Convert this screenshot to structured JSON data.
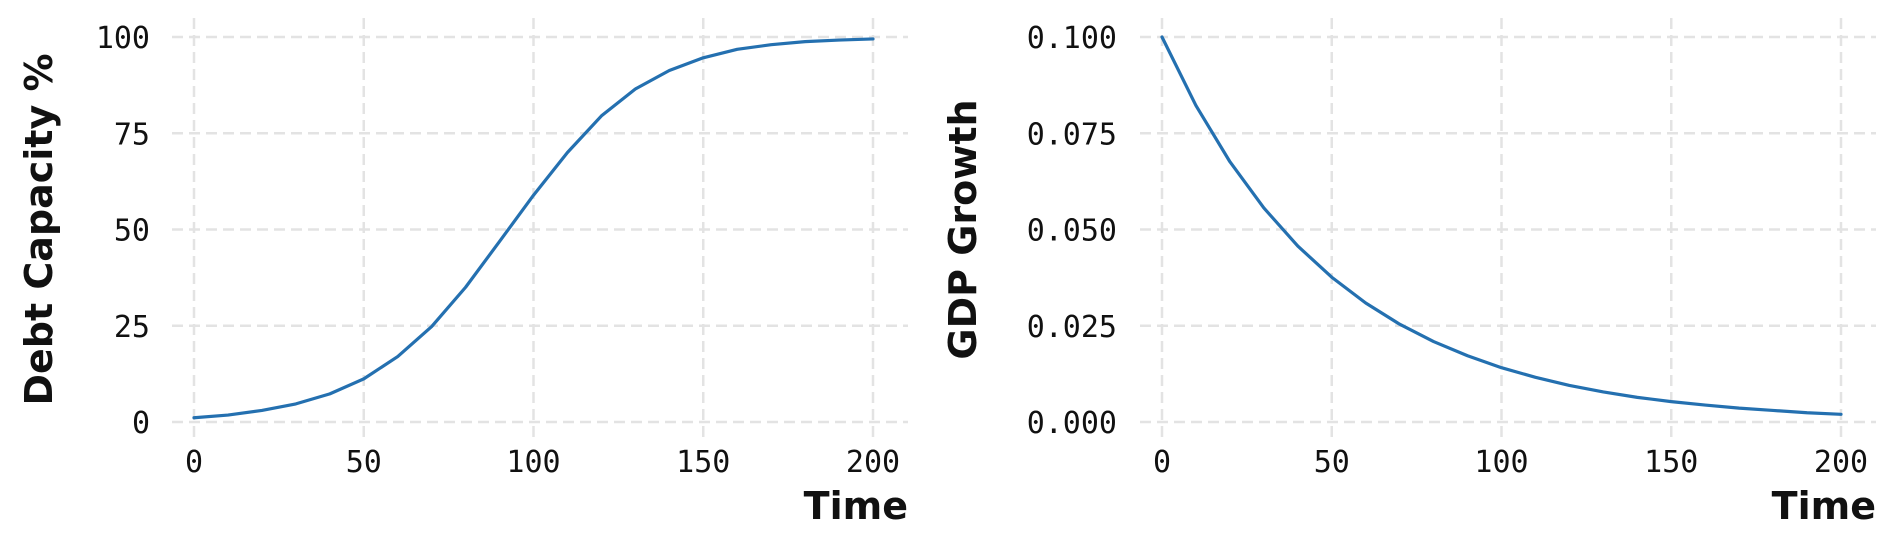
{
  "chart_data": [
    {
      "type": "line",
      "title": "",
      "xlabel": "Time",
      "ylabel": "Debt Capacity %",
      "xlim": [
        0,
        200
      ],
      "ylim": [
        0,
        100
      ],
      "xticks": [
        0,
        50,
        100,
        150,
        200
      ],
      "yticks": [
        0,
        25,
        50,
        75,
        100
      ],
      "xtick_labels": [
        "0",
        "50",
        "100",
        "150",
        "200"
      ],
      "ytick_labels": [
        "0",
        "25",
        "50",
        "75",
        "100"
      ],
      "grid": true,
      "legend": "none",
      "color": "#2470b0",
      "series": [
        {
          "x": [
            0,
            10,
            20,
            30,
            40,
            50,
            60,
            70,
            80,
            90,
            100,
            110,
            120,
            130,
            140,
            150,
            160,
            170,
            180,
            190,
            200
          ],
          "values": [
            1.1,
            1.8,
            3.0,
            4.7,
            7.3,
            11.2,
            17.0,
            24.8,
            35.0,
            46.9,
            58.9,
            70.0,
            79.5,
            86.5,
            91.3,
            94.6,
            96.8,
            98.0,
            98.8,
            99.2,
            99.5
          ]
        }
      ]
    },
    {
      "type": "line",
      "title": "",
      "xlabel": "Time",
      "ylabel": "GDP Growth",
      "xlim": [
        0,
        200
      ],
      "ylim": [
        0,
        0.1
      ],
      "xticks": [
        0,
        50,
        100,
        150,
        200
      ],
      "yticks": [
        0,
        0.025,
        0.05,
        0.075,
        0.1
      ],
      "xtick_labels": [
        "0",
        "50",
        "100",
        "150",
        "200"
      ],
      "ytick_labels": [
        "0.000",
        "0.025",
        "0.050",
        "0.075",
        "0.100"
      ],
      "grid": true,
      "legend": "none",
      "color": "#2470b0",
      "series": [
        {
          "x": [
            0,
            10,
            20,
            30,
            40,
            50,
            60,
            70,
            80,
            90,
            100,
            110,
            120,
            130,
            140,
            150,
            160,
            170,
            180,
            190,
            200
          ],
          "values": [
            0.1,
            0.0822,
            0.0676,
            0.0556,
            0.0457,
            0.0376,
            0.0309,
            0.0254,
            0.0209,
            0.0172,
            0.0141,
            0.0116,
            0.0095,
            0.0078,
            0.0064,
            0.0053,
            0.0044,
            0.0036,
            0.003,
            0.0024,
            0.002
          ]
        }
      ]
    }
  ]
}
